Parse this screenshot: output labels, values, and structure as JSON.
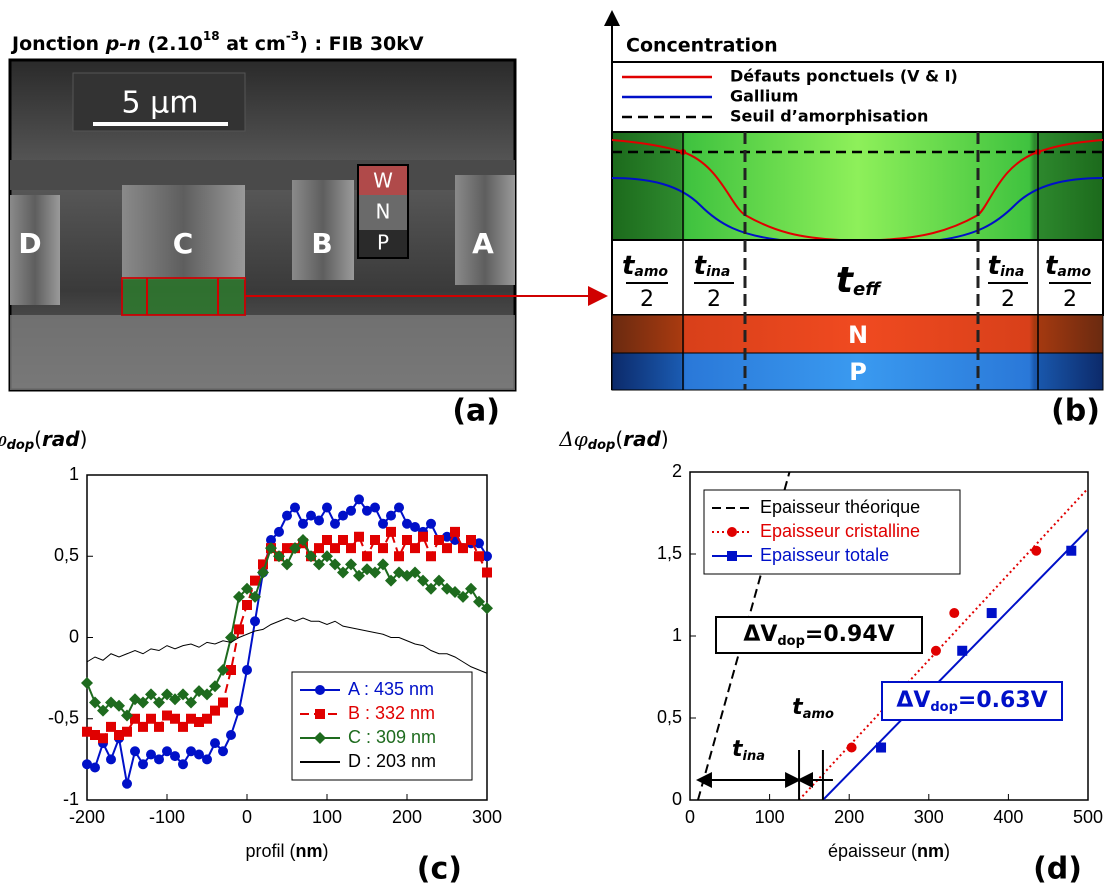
{
  "panel_a": {
    "title": [
      "Jonction ",
      "p-n",
      " (2.10",
      "18",
      " at cm",
      "-3",
      ") : FIB 30kV"
    ],
    "scale_bar": "5 µm",
    "pillars": [
      "D",
      "C",
      "B",
      "A"
    ],
    "layers": [
      "W",
      "N",
      "P"
    ],
    "label": "(a)"
  },
  "panel_b": {
    "axis_label": "Concentration",
    "legend": [
      "Défauts ponctuels (V & I)",
      "Gallium",
      "Seuil d’amorphisation"
    ],
    "zones": [
      {
        "t": "t",
        "sub": "amo",
        "den": "2"
      },
      {
        "t": "t",
        "sub": "ina",
        "den": "2"
      },
      {
        "t": "t",
        "sub": "eff"
      },
      {
        "t": "t",
        "sub": "ina",
        "den": "2"
      },
      {
        "t": "t",
        "sub": "amo",
        "den": "2"
      }
    ],
    "layers": [
      "N",
      "P"
    ],
    "label": "(b)"
  },
  "chart_data": [
    {
      "type": "line",
      "ylabel": [
        "φ",
        "dop",
        "(",
        "rad",
        ")"
      ],
      "xlabel": [
        "profil (",
        "nm",
        ")"
      ],
      "panel_label": "(c)",
      "xlim": [
        -200,
        300
      ],
      "xticks": [
        -200,
        -100,
        0,
        100,
        200,
        300
      ],
      "ylim": [
        -1,
        1
      ],
      "yticks": [
        -1,
        {
          "value": -0.5,
          "label": "-0,5"
        },
        0,
        {
          "value": 0.5,
          "label": "0,5"
        },
        1
      ],
      "legend": "lower right",
      "x": [
        -200,
        -190,
        -180,
        -170,
        -160,
        -150,
        -140,
        -130,
        -120,
        -110,
        -100,
        -90,
        -80,
        -70,
        -60,
        -50,
        -40,
        -30,
        -20,
        -10,
        0,
        10,
        20,
        30,
        40,
        50,
        60,
        70,
        80,
        90,
        100,
        110,
        120,
        130,
        140,
        150,
        160,
        170,
        180,
        190,
        200,
        210,
        220,
        230,
        240,
        250,
        260,
        270,
        280,
        290,
        300
      ],
      "series": [
        {
          "name": "A : 435 nm",
          "color": "#0010c8",
          "marker": "circle",
          "dash": "solid",
          "values": [
            -0.78,
            -0.8,
            -0.65,
            -0.75,
            -0.62,
            -0.9,
            -0.7,
            -0.78,
            -0.72,
            -0.75,
            -0.7,
            -0.73,
            -0.78,
            -0.7,
            -0.72,
            -0.75,
            -0.65,
            -0.7,
            -0.6,
            -0.45,
            -0.2,
            0.1,
            0.4,
            0.6,
            0.65,
            0.75,
            0.8,
            0.7,
            0.75,
            0.72,
            0.8,
            0.7,
            0.75,
            0.78,
            0.85,
            0.78,
            0.8,
            0.7,
            0.75,
            0.8,
            0.7,
            0.68,
            0.65,
            0.7,
            0.6,
            0.62,
            0.6,
            0.55,
            0.58,
            0.58,
            0.5
          ]
        },
        {
          "name": "B : 332 nm",
          "color": "#e00000",
          "marker": "square",
          "dash": "dashed",
          "values": [
            -0.58,
            -0.6,
            -0.62,
            -0.55,
            -0.6,
            -0.58,
            -0.5,
            -0.55,
            -0.5,
            -0.55,
            -0.48,
            -0.5,
            -0.55,
            -0.5,
            -0.52,
            -0.5,
            -0.45,
            -0.4,
            -0.2,
            0.05,
            0.2,
            0.35,
            0.45,
            0.55,
            0.5,
            0.55,
            0.55,
            0.58,
            0.5,
            0.55,
            0.6,
            0.55,
            0.6,
            0.55,
            0.62,
            0.5,
            0.6,
            0.55,
            0.65,
            0.5,
            0.6,
            0.55,
            0.62,
            0.5,
            0.6,
            0.55,
            0.65,
            0.55,
            0.6,
            0.5,
            0.4
          ]
        },
        {
          "name": "C : 309 nm",
          "color": "#1e6b1e",
          "marker": "diamond",
          "dash": "solid",
          "values": [
            -0.28,
            -0.4,
            -0.45,
            -0.4,
            -0.42,
            -0.48,
            -0.38,
            -0.4,
            -0.35,
            -0.4,
            -0.35,
            -0.38,
            -0.35,
            -0.4,
            -0.33,
            -0.35,
            -0.3,
            -0.2,
            0.0,
            0.25,
            0.3,
            0.25,
            0.4,
            0.55,
            0.5,
            0.45,
            0.55,
            0.6,
            0.5,
            0.45,
            0.5,
            0.45,
            0.4,
            0.45,
            0.38,
            0.42,
            0.4,
            0.45,
            0.35,
            0.4,
            0.38,
            0.4,
            0.35,
            0.3,
            0.35,
            0.3,
            0.28,
            0.25,
            0.3,
            0.22,
            0.18
          ]
        },
        {
          "name": "D : 203 nm",
          "color": "#000000",
          "marker": "none",
          "dash": "solid",
          "values": [
            -0.15,
            -0.12,
            -0.14,
            -0.1,
            -0.12,
            -0.1,
            -0.08,
            -0.1,
            -0.07,
            -0.08,
            -0.05,
            -0.07,
            -0.05,
            -0.04,
            -0.06,
            -0.03,
            -0.04,
            -0.02,
            -0.03,
            0.0,
            0.02,
            0.04,
            0.05,
            0.08,
            0.1,
            0.12,
            0.1,
            0.12,
            0.1,
            0.1,
            0.08,
            0.1,
            0.07,
            0.06,
            0.05,
            0.04,
            0.03,
            0.02,
            0.0,
            0.0,
            -0.02,
            -0.04,
            -0.05,
            -0.08,
            -0.1,
            -0.1,
            -0.12,
            -0.15,
            -0.18,
            -0.2,
            -0.22
          ]
        }
      ]
    },
    {
      "type": "scatter",
      "ylabel": [
        "Δφ",
        "dop",
        "(",
        "rad",
        ")"
      ],
      "xlabel": [
        "épaisseur (",
        "nm",
        ")"
      ],
      "panel_label": "(d)",
      "xlim": [
        0,
        500
      ],
      "xticks": [
        0,
        100,
        200,
        300,
        400,
        500
      ],
      "ylim": [
        0,
        2
      ],
      "yticks": [
        0,
        {
          "value": 0.5,
          "label": "0,5"
        },
        1,
        {
          "value": 1.5,
          "label": "1,5"
        },
        2
      ],
      "legend": "upper left",
      "series": [
        {
          "name": "Epaisseur théorique",
          "color": "#000000",
          "marker": "none",
          "dash": "dashed",
          "x": [
            10,
            125
          ],
          "values": [
            0,
            2
          ]
        },
        {
          "name": "Epaisseur cristalline",
          "color": "#e00000",
          "marker": "circle",
          "dash": "dotted",
          "x": [
            203,
            309,
            332,
            435
          ],
          "values": [
            0.32,
            0.91,
            1.14,
            1.52
          ],
          "fit": {
            "x": [
              137,
              500
            ],
            "values": [
              0,
              1.9
            ]
          }
        },
        {
          "name": "Epaisseur totale",
          "color": "#0010c8",
          "marker": "square",
          "dash": "solid",
          "x": [
            240,
            342,
            379,
            479
          ],
          "values": [
            0.32,
            0.91,
            1.14,
            1.52
          ],
          "fit": {
            "x": [
              167,
              500
            ],
            "values": [
              0,
              1.65
            ]
          }
        }
      ],
      "annotations": {
        "theory": [
          "ΔV",
          "dop",
          "=0.94V"
        ],
        "total": [
          "ΔV",
          "dop",
          "=0.63V"
        ],
        "t_ina": [
          "t",
          "ina"
        ],
        "t_amo": [
          "t",
          "amo"
        ]
      }
    }
  ]
}
